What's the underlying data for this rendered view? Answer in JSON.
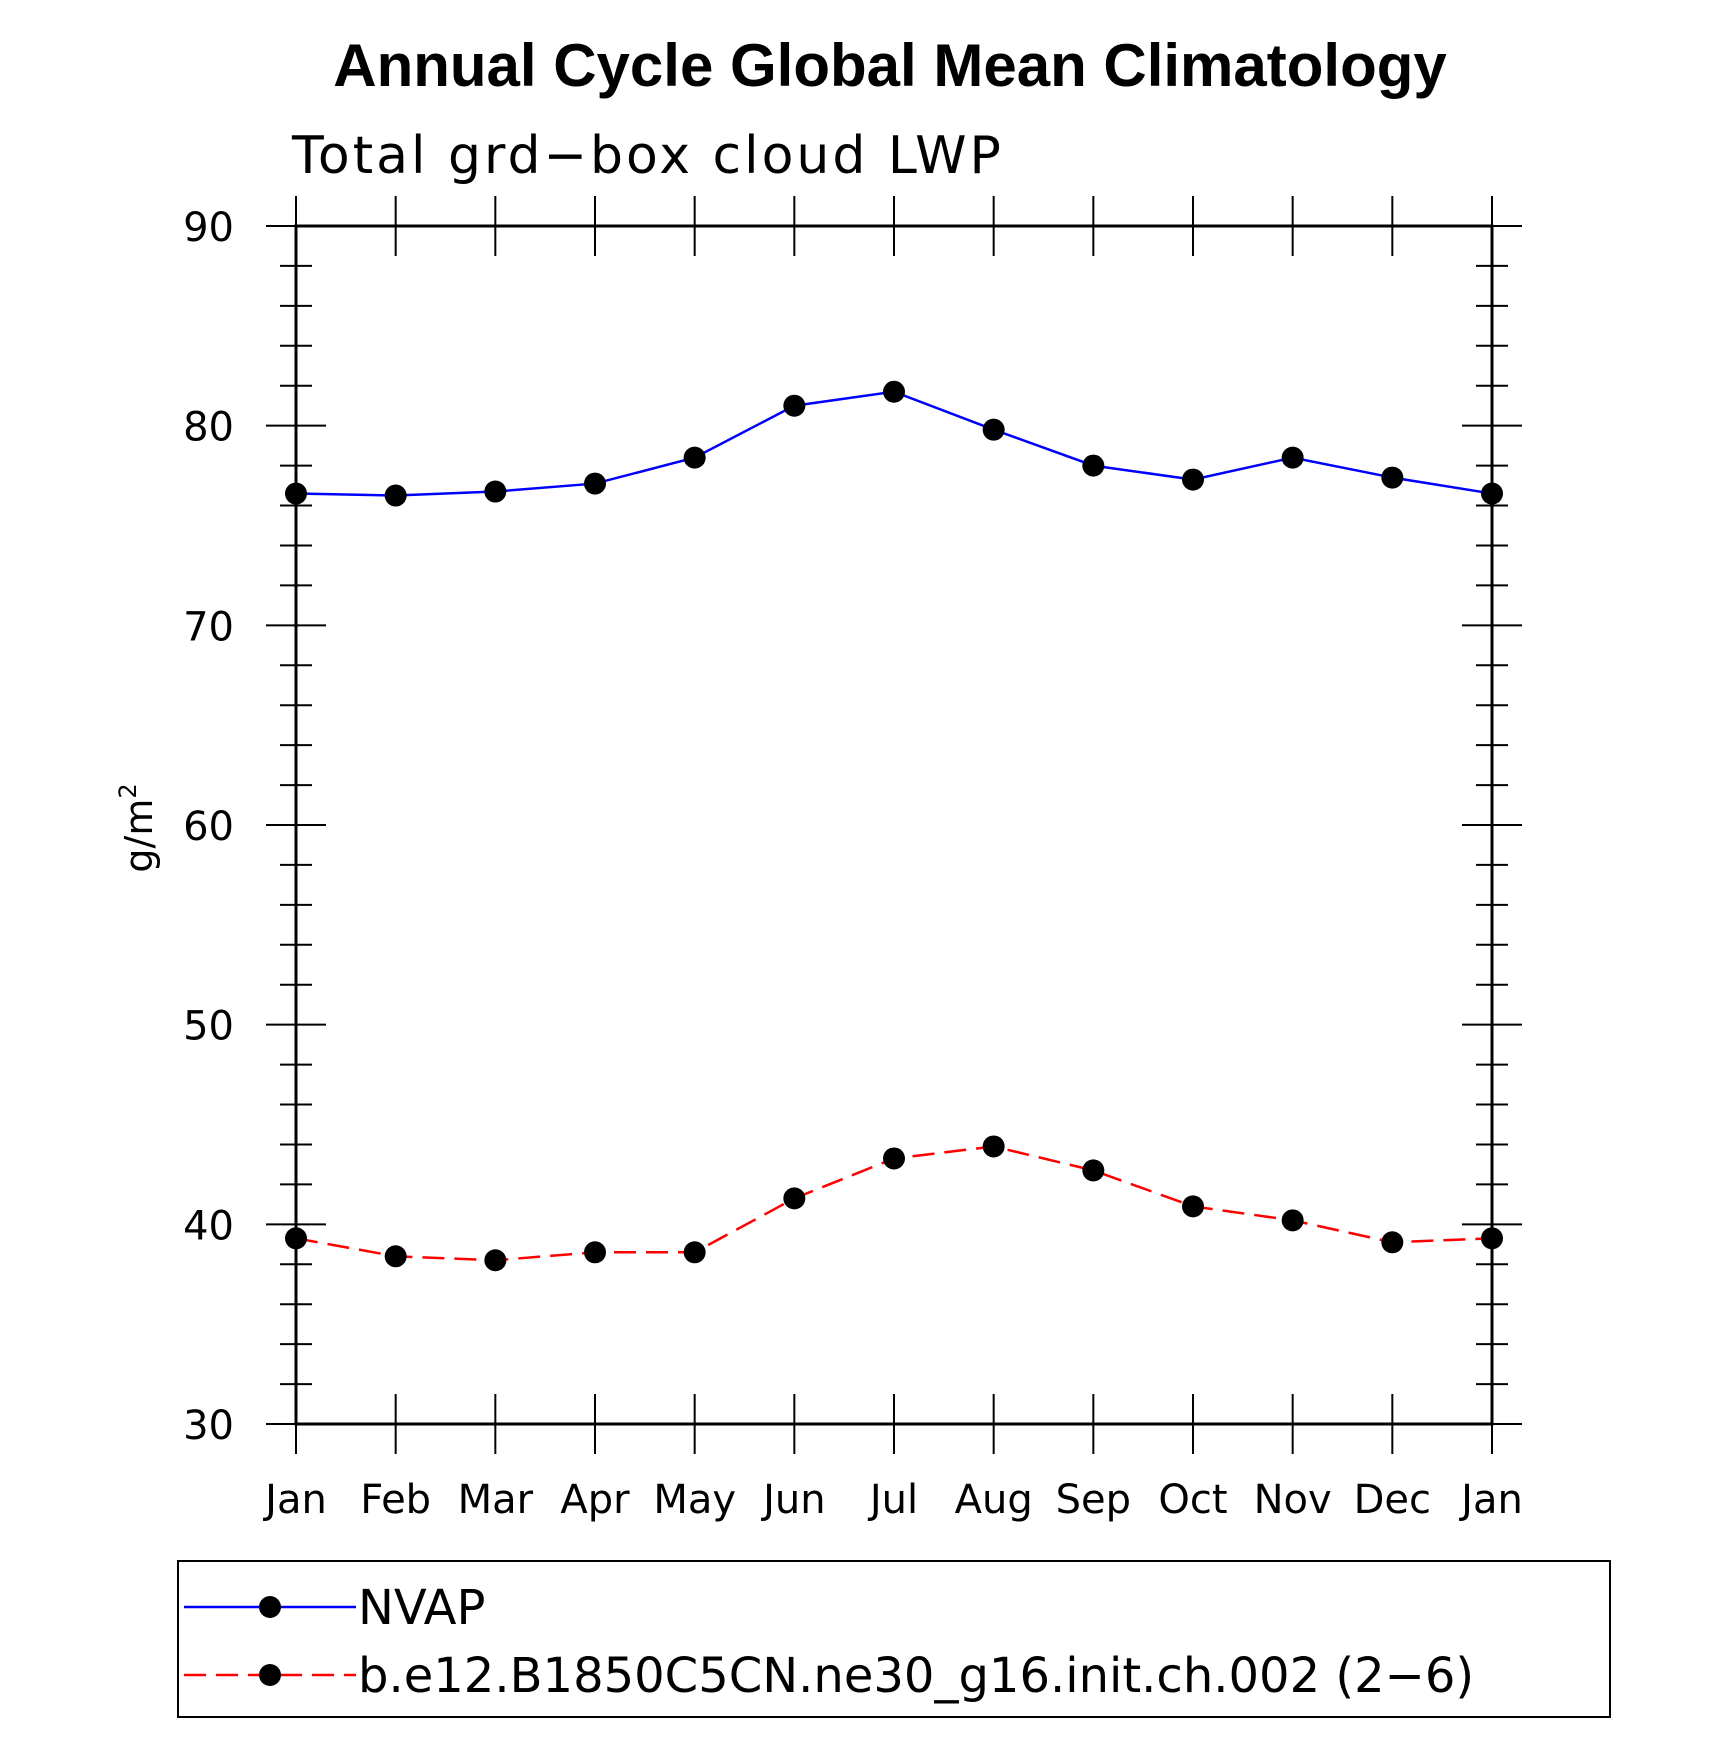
{
  "chart_data": {
    "type": "line",
    "title": "Annual Cycle Global Mean Climatology",
    "subtitle": "Total grd−box cloud LWP",
    "ylabel": "g/m",
    "ylabel_superscript": "2",
    "categories": [
      "Jan",
      "Feb",
      "Mar",
      "Apr",
      "May",
      "Jun",
      "Jul",
      "Aug",
      "Sep",
      "Oct",
      "Nov",
      "Dec",
      "Jan"
    ],
    "ylim": [
      30,
      90
    ],
    "yticks": [
      30,
      40,
      50,
      60,
      70,
      80,
      90
    ],
    "legend_position": "bottom",
    "series": [
      {
        "name": "NVAP",
        "color": "#0000ff",
        "line_style": "solid",
        "marker": "filled-circle",
        "values": [
          76.6,
          76.5,
          76.7,
          77.1,
          78.4,
          81.0,
          81.7,
          79.8,
          78.0,
          77.3,
          78.4,
          77.4,
          76.6
        ]
      },
      {
        "name": "b.e12.B1850C5CN.ne30_g16.init.ch.002 (2−6)",
        "color": "#ff0000",
        "line_style": "dashed",
        "marker": "filled-circle",
        "values": [
          39.3,
          38.4,
          38.2,
          38.6,
          38.6,
          41.3,
          43.3,
          43.9,
          42.7,
          40.9,
          40.2,
          39.1,
          39.3
        ]
      }
    ]
  }
}
